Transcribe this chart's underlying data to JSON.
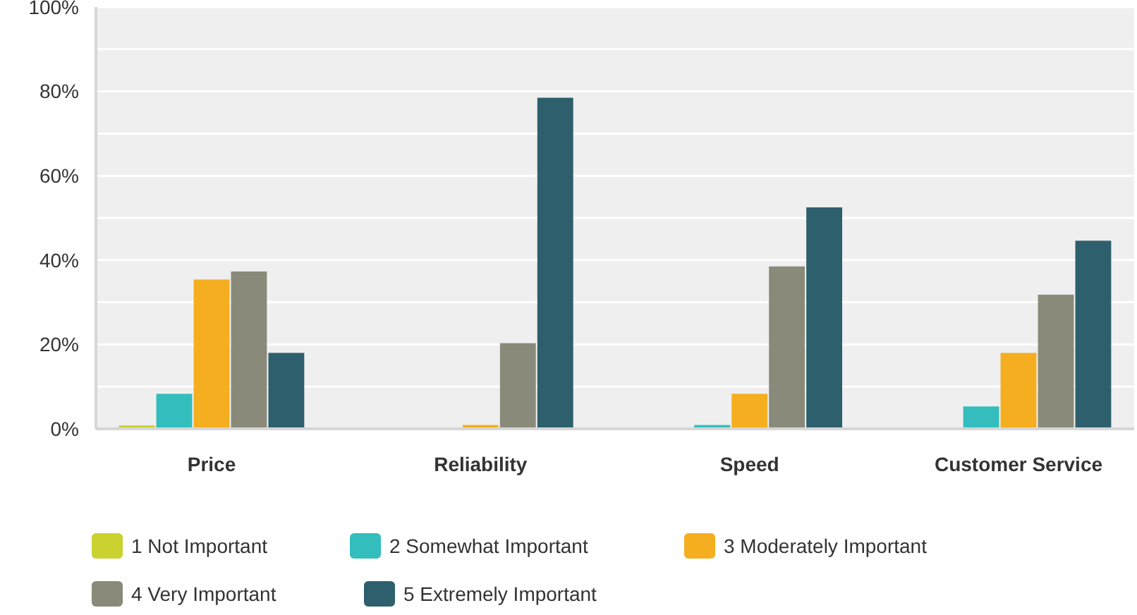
{
  "chart_data": {
    "type": "bar",
    "categories": [
      "Price",
      "Reliability",
      "Speed",
      "Customer Service"
    ],
    "series": [
      {
        "name": "1 Not Important",
        "color": "#c9d22e",
        "values": [
          0.8,
          null,
          null,
          null
        ]
      },
      {
        "name": "2 Somewhat Important",
        "color": "#33bdbd",
        "values": [
          8.3,
          null,
          0.9,
          5.3
        ]
      },
      {
        "name": "3 Moderately Important",
        "color": "#f5ae1f",
        "values": [
          35.4,
          0.9,
          8.3,
          18
        ]
      },
      {
        "name": "4 Very Important",
        "color": "#898a79",
        "values": [
          37.3,
          20.3,
          38.5,
          31.8
        ]
      },
      {
        "name": "5 Extremely Important",
        "color": "#2e5f6d",
        "values": [
          18,
          78.5,
          52.5,
          44.6
        ]
      }
    ],
    "ylim": [
      0,
      100
    ],
    "yticks": [
      {
        "value": 0,
        "label": "0%"
      },
      {
        "value": 10,
        "label": null
      },
      {
        "value": 20,
        "label": "20%"
      },
      {
        "value": 30,
        "label": null
      },
      {
        "value": 40,
        "label": "40%"
      },
      {
        "value": 50,
        "label": null
      },
      {
        "value": 60,
        "label": "60%"
      },
      {
        "value": 70,
        "label": null
      },
      {
        "value": 80,
        "label": "80%"
      },
      {
        "value": 90,
        "label": null
      },
      {
        "value": 100,
        "label": "100%"
      }
    ],
    "grid": "y",
    "legend": "bottom"
  }
}
